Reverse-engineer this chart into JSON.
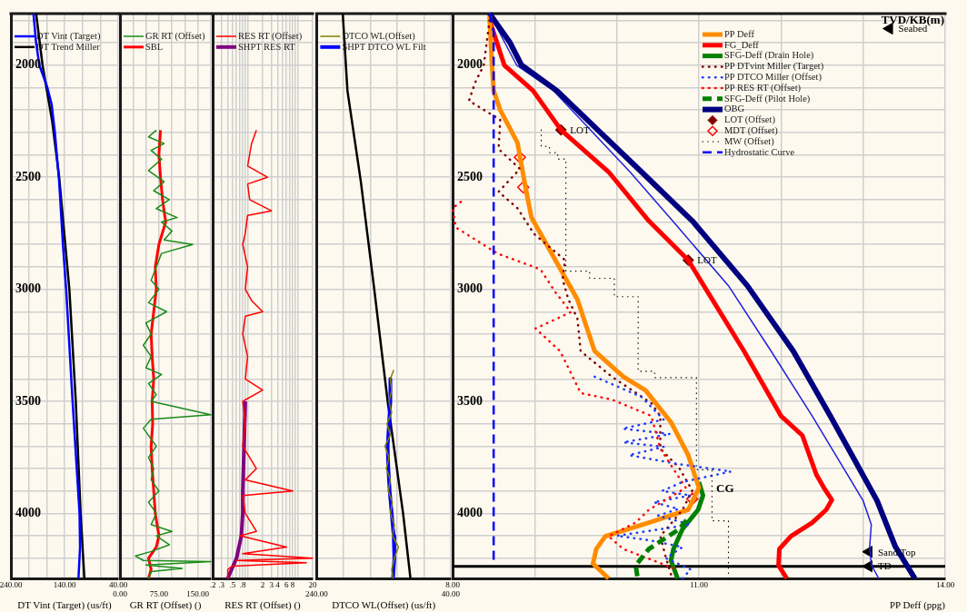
{
  "chart_data": [
    {
      "type": "line",
      "xlabel": "DT Vint (Target) (us/ft)",
      "xlim": [
        240,
        40
      ],
      "ylim": [
        4290,
        1770
      ],
      "xticks": [
        {
          "value": 240,
          "label": "240.00"
        },
        {
          "value": 206.67,
          "label": null
        },
        {
          "value": 173.33,
          "label": null
        },
        {
          "value": 140,
          "label": "140.00"
        },
        {
          "value": 106.67,
          "label": null
        },
        {
          "value": 73.33,
          "label": null
        },
        {
          "value": 40,
          "label": "40.00"
        }
      ],
      "yticks": [
        {
          "value": 1800,
          "label": null
        },
        {
          "value": 1900,
          "label": null
        },
        2000,
        {
          "value": 2100,
          "label": null
        },
        {
          "value": 2200,
          "label": null
        },
        {
          "value": 2300,
          "label": null
        },
        {
          "value": 2400,
          "label": null
        },
        2500,
        {
          "value": 2600,
          "label": null
        },
        {
          "value": 2700,
          "label": null
        },
        {
          "value": 2800,
          "label": null
        },
        {
          "value": 2900,
          "label": null
        },
        3000,
        {
          "value": 3100,
          "label": null
        },
        {
          "value": 3200,
          "label": null
        },
        {
          "value": 3300,
          "label": null
        },
        {
          "value": 3400,
          "label": null
        },
        3500,
        {
          "value": 3600,
          "label": null
        },
        {
          "value": 3700,
          "label": null
        },
        {
          "value": 3800,
          "label": null
        },
        {
          "value": 3900,
          "label": null
        },
        4000,
        {
          "value": 4100,
          "label": null
        },
        {
          "value": 4200,
          "label": null
        }
      ],
      "grid": true,
      "legend": "top left",
      "series": [
        {
          "name": "DT Vint (Target)",
          "color": "#0000ff",
          "x": [
            198,
            193,
            187,
            172,
            164,
            158,
            150,
            143,
            137,
            125,
            112,
            111,
            114
          ],
          "values": [
            1770,
            1900,
            2000,
            2100,
            2175,
            2300,
            2520,
            2800,
            3000,
            3500,
            4000,
            4150,
            4290
          ]
        },
        {
          "name": "DT Trend Miller",
          "color": "#000000",
          "x": [
            193,
            181,
            163,
            150,
            131,
            119,
            110,
            103
          ],
          "values": [
            1770,
            2000,
            2250,
            2500,
            3000,
            3500,
            4000,
            4290
          ]
        }
      ]
    },
    {
      "type": "line",
      "xlabel": "GR RT (Offset) ()",
      "xlim": [
        0,
        175
      ],
      "ylim": [
        4290,
        1770
      ],
      "tick_labels": "x",
      "xticks": [
        {
          "value": 0,
          "label": "0.00"
        },
        {
          "value": 25,
          "label": null
        },
        {
          "value": 50,
          "label": null
        },
        {
          "value": 75,
          "label": "75.00"
        },
        {
          "value": 100,
          "label": null
        },
        {
          "value": 125,
          "label": null
        },
        {
          "value": 150,
          "label": "150.00"
        },
        {
          "value": 175,
          "label": null
        }
      ],
      "yticks": [
        {
          "value": 1800,
          "label": null
        },
        {
          "value": 1900,
          "label": null
        },
        2000,
        {
          "value": 2100,
          "label": null
        },
        {
          "value": 2200,
          "label": null
        },
        {
          "value": 2300,
          "label": null
        },
        {
          "value": 2400,
          "label": null
        },
        2500,
        {
          "value": 2600,
          "label": null
        },
        {
          "value": 2700,
          "label": null
        },
        {
          "value": 2800,
          "label": null
        },
        {
          "value": 2900,
          "label": null
        },
        3000,
        {
          "value": 3100,
          "label": null
        },
        {
          "value": 3200,
          "label": null
        },
        {
          "value": 3300,
          "label": null
        },
        {
          "value": 3400,
          "label": null
        },
        3500,
        {
          "value": 3600,
          "label": null
        },
        {
          "value": 3700,
          "label": null
        },
        {
          "value": 3800,
          "label": null
        },
        {
          "value": 3900,
          "label": null
        },
        4000,
        {
          "value": 4100,
          "label": null
        },
        {
          "value": 4200,
          "label": null
        }
      ],
      "grid": true,
      "legend": "top left",
      "series": [
        {
          "name": "GR RT (Offset)",
          "color": "#1a8a1a",
          "x": [
            70,
            55,
            85,
            60,
            80,
            55,
            85,
            65,
            95,
            70,
            110,
            80,
            100,
            85,
            140,
            80,
            70,
            60,
            75,
            55,
            90,
            50,
            60,
            45,
            60,
            50,
            80,
            55,
            70,
            60,
            175,
            60,
            45,
            70,
            55,
            65,
            60,
            75,
            55,
            70,
            60,
            100,
            70,
            95,
            60,
            30,
            45,
            175,
            50,
            120,
            60,
            55
          ],
          "values": [
            2290,
            2320,
            2350,
            2380,
            2420,
            2470,
            2520,
            2560,
            2600,
            2640,
            2680,
            2700,
            2740,
            2780,
            2800,
            2840,
            2900,
            2960,
            3000,
            3060,
            3100,
            3150,
            3200,
            3250,
            3300,
            3350,
            3380,
            3420,
            3470,
            3500,
            3560,
            3580,
            3620,
            3700,
            3750,
            3800,
            3850,
            3900,
            3950,
            4000,
            4050,
            4080,
            4100,
            4140,
            4170,
            4190,
            4210,
            4215,
            4230,
            4245,
            4260,
            4290
          ]
        },
        {
          "name": "SBL",
          "color": "#ff0000",
          "x": [
            78,
            75,
            78,
            82,
            88,
            75,
            68,
            70,
            65,
            60,
            62,
            65,
            62,
            63,
            60,
            62,
            65,
            68,
            75,
            70,
            55,
            60,
            55
          ],
          "values": [
            2290,
            2400,
            2500,
            2600,
            2700,
            2800,
            2900,
            3000,
            3100,
            3200,
            3300,
            3400,
            3500,
            3600,
            3700,
            3800,
            3900,
            4000,
            4100,
            4150,
            4200,
            4250,
            4290
          ]
        }
      ]
    },
    {
      "type": "line",
      "xlabel": "RES RT (Offset) ()",
      "xlim": [
        0.2,
        20
      ],
      "ylim": [
        4290,
        1770
      ],
      "log": "x",
      "tick_labels": "x",
      "xticks": [
        {
          "value": 0.2,
          "label": ".2"
        },
        {
          "value": 0.3,
          "label": ".3"
        },
        {
          "value": 0.4,
          "label": null
        },
        {
          "value": 0.5,
          "label": ".5"
        },
        {
          "value": 0.6,
          "label": null
        },
        {
          "value": 0.7,
          "label": null
        },
        {
          "value": 0.8,
          "label": ".8"
        },
        {
          "value": 0.9,
          "label": null
        },
        {
          "value": 1,
          "label": null
        },
        2,
        3,
        4,
        {
          "value": 5,
          "label": null
        },
        6,
        {
          "value": 7,
          "label": null
        },
        8,
        {
          "value": 9,
          "label": null
        },
        {
          "value": 10,
          "label": null
        },
        20
      ],
      "yticks": [
        {
          "value": 1800,
          "label": null
        },
        {
          "value": 1900,
          "label": null
        },
        2000,
        {
          "value": 2100,
          "label": null
        },
        {
          "value": 2200,
          "label": null
        },
        {
          "value": 2300,
          "label": null
        },
        {
          "value": 2400,
          "label": null
        },
        2500,
        {
          "value": 2600,
          "label": null
        },
        {
          "value": 2700,
          "label": null
        },
        {
          "value": 2800,
          "label": null
        },
        {
          "value": 2900,
          "label": null
        },
        3000,
        {
          "value": 3100,
          "label": null
        },
        {
          "value": 3200,
          "label": null
        },
        {
          "value": 3300,
          "label": null
        },
        {
          "value": 3400,
          "label": null
        },
        3500,
        {
          "value": 3600,
          "label": null
        },
        {
          "value": 3700,
          "label": null
        },
        {
          "value": 3800,
          "label": null
        },
        {
          "value": 3900,
          "label": null
        },
        4000,
        {
          "value": 4100,
          "label": null
        },
        {
          "value": 4200,
          "label": null
        }
      ],
      "grid": true,
      "legend": "top left",
      "series": [
        {
          "name": "RES RT (Offset)",
          "color": "#ff0000",
          "x": [
            1.5,
            1.2,
            1.0,
            2.5,
            1.0,
            1.1,
            3,
            1.0,
            0.9,
            0.8,
            1.0,
            0.9,
            1.2,
            2,
            0.9,
            0.8,
            1.0,
            0.9,
            2,
            0.8,
            0.9,
            0.8,
            1.5,
            0.9,
            8,
            0.8,
            0.9,
            1.5,
            0.7,
            6,
            0.8,
            20,
            0.6,
            15,
            0.5,
            0.4,
            0.4
          ],
          "values": [
            2290,
            2350,
            2450,
            2500,
            2530,
            2600,
            2650,
            2670,
            2750,
            2800,
            2900,
            3000,
            3050,
            3100,
            3120,
            3200,
            3300,
            3400,
            3450,
            3500,
            3600,
            3700,
            3800,
            3850,
            3900,
            3920,
            4000,
            4080,
            4100,
            4150,
            4180,
            4200,
            4210,
            4220,
            4235,
            4250,
            4290
          ]
        },
        {
          "name": "SHPT RES RT",
          "color": "#800080",
          "x": [
            0.9,
            0.85,
            0.8,
            0.8,
            0.75,
            0.6,
            0.4
          ],
          "values": [
            3500,
            3700,
            3900,
            4000,
            4100,
            4200,
            4290
          ]
        }
      ]
    },
    {
      "type": "line",
      "xlabel": "DTCO WL(Offset) (us/ft)",
      "xlim": [
        240,
        40
      ],
      "ylim": [
        4290,
        1770
      ],
      "tick_labels": "x",
      "xticks": [
        {
          "value": 240,
          "label": "240.00"
        },
        {
          "value": 200,
          "label": null
        },
        {
          "value": 160,
          "label": null
        },
        {
          "value": 120,
          "label": null
        },
        {
          "value": 80,
          "label": null
        },
        {
          "value": 40,
          "label": "40.00"
        }
      ],
      "yticks": [
        {
          "value": 1800,
          "label": null
        },
        {
          "value": 1900,
          "label": null
        },
        2000,
        {
          "value": 2100,
          "label": null
        },
        {
          "value": 2200,
          "label": null
        },
        {
          "value": 2300,
          "label": null
        },
        {
          "value": 2400,
          "label": null
        },
        2500,
        {
          "value": 2600,
          "label": null
        },
        {
          "value": 2700,
          "label": null
        },
        {
          "value": 2800,
          "label": null
        },
        {
          "value": 2900,
          "label": null
        },
        3000,
        {
          "value": 3100,
          "label": null
        },
        {
          "value": 3200,
          "label": null
        },
        {
          "value": 3300,
          "label": null
        },
        {
          "value": 3400,
          "label": null
        },
        3500,
        {
          "value": 3600,
          "label": null
        },
        {
          "value": 3700,
          "label": null
        },
        {
          "value": 3800,
          "label": null
        },
        {
          "value": 3900,
          "label": null
        },
        4000,
        {
          "value": 4100,
          "label": null
        },
        {
          "value": 4200,
          "label": null
        }
      ],
      "grid": true,
      "legend": "top left",
      "series": [
        {
          "name": "DTCO WL(Offset)",
          "color": "#808000",
          "x": [
            125,
            130,
            128,
            132,
            128,
            135,
            130,
            138,
            132,
            136,
            130,
            133,
            127,
            130,
            124,
            127,
            118,
            124,
            128,
            126
          ],
          "values": [
            3360,
            3400,
            3450,
            3500,
            3550,
            3600,
            3650,
            3700,
            3750,
            3800,
            3850,
            3900,
            3950,
            4000,
            4050,
            4100,
            4150,
            4200,
            4250,
            4290
          ]
        },
        {
          "name": "SHPT DTCO WL Filt",
          "color": "#0000ff",
          "x": [
            130,
            130,
            132,
            134,
            133,
            131,
            128,
            125,
            124,
            126
          ],
          "values": [
            3400,
            3500,
            3600,
            3700,
            3800,
            3900,
            4000,
            4100,
            4200,
            4290
          ]
        },
        {
          "color": "#000000",
          "x": [
            201,
            194,
            174,
            154,
            134,
            111,
            100
          ],
          "values": [
            1770,
            2114,
            2520,
            3000,
            3500,
            4000,
            4290
          ]
        }
      ]
    },
    {
      "type": "line",
      "xlabel": "PP Deff (ppg)",
      "ylabel": "TVD/KB(m)",
      "xlim": [
        8,
        14
      ],
      "ylim": [
        4290,
        1770
      ],
      "xticks": [
        {
          "value": 8,
          "label": "8.00"
        },
        {
          "value": 9,
          "label": null
        },
        {
          "value": 10,
          "label": null
        },
        {
          "value": 11,
          "label": "11.00"
        },
        {
          "value": 12,
          "label": null
        },
        {
          "value": 13,
          "label": null
        },
        {
          "value": 14,
          "label": "14.00"
        }
      ],
      "yticks": [
        {
          "value": 1800,
          "label": null
        },
        {
          "value": 1900,
          "label": null
        },
        2000,
        {
          "value": 2100,
          "label": null
        },
        {
          "value": 2200,
          "label": null
        },
        {
          "value": 2300,
          "label": null
        },
        {
          "value": 2400,
          "label": null
        },
        2500,
        {
          "value": 2600,
          "label": null
        },
        {
          "value": 2700,
          "label": null
        },
        {
          "value": 2800,
          "label": null
        },
        {
          "value": 2900,
          "label": null
        },
        3000,
        {
          "value": 3100,
          "label": null
        },
        {
          "value": 3200,
          "label": null
        },
        {
          "value": 3300,
          "label": null
        },
        {
          "value": 3400,
          "label": null
        },
        3500,
        {
          "value": 3600,
          "label": null
        },
        {
          "value": 3700,
          "label": null
        },
        {
          "value": 3800,
          "label": null
        },
        {
          "value": 3900,
          "label": null
        },
        4000,
        {
          "value": 4100,
          "label": null
        },
        {
          "value": 4200,
          "label": null
        }
      ],
      "grid": true,
      "legend": "top",
      "ref_lines": [
        {
          "axis": "y",
          "value": 4236,
          "label": "TD",
          "color": "#000000"
        }
      ],
      "annotations": [
        {
          "text": "LOT",
          "x": 9.32,
          "y": 2289
        },
        {
          "text": "LOT",
          "x": 10.87,
          "y": 2870
        },
        {
          "text": "CG",
          "x": 11.1,
          "y": 3886
        },
        {
          "text": "Seabed",
          "x": 13.32,
          "y": 1837
        },
        {
          "text": "Sand Top",
          "x": 13.07,
          "y": 4171
        }
      ],
      "series": [
        {
          "name": "PP Deff",
          "color": "#ff8c00",
          "x": [
            8.45,
            8.48,
            8.5,
            8.58,
            8.79,
            8.89,
            8.96,
            9.52,
            9.73,
            10.08,
            10.35,
            10.66,
            10.87,
            11.0,
            10.87,
            10.39,
            9.86,
            9.75,
            9.71,
            9.9
          ],
          "values": [
            1780,
            2000,
            2114,
            2200,
            2346,
            2549,
            2679,
            3045,
            3276,
            3390,
            3451,
            3593,
            3740,
            3886,
            3984,
            4041,
            4102,
            4159,
            4224,
            4290
          ]
        },
        {
          "name": "FG_Deff",
          "color": "#ff0000",
          "x": [
            8.45,
            8.63,
            8.98,
            9.32,
            9.9,
            10.39,
            10.87,
            11.06,
            11.55,
            12.0,
            12.26,
            12.43,
            12.52,
            12.62,
            12.55,
            12.38,
            12.12,
            11.98,
            11.97,
            12.07
          ],
          "values": [
            1800,
            2000,
            2114,
            2289,
            2476,
            2695,
            2870,
            2984,
            3276,
            3565,
            3652,
            3826,
            3884,
            3940,
            3984,
            4041,
            4102,
            4159,
            4232,
            4290
          ]
        },
        {
          "name": "SFG-Deff (Drain Hole)",
          "color": "#008000",
          "x": [
            11.0,
            11.05,
            10.99,
            10.8,
            10.69,
            10.66,
            10.74
          ],
          "values": [
            3860,
            3920,
            3984,
            4070,
            4159,
            4210,
            4290
          ]
        },
        {
          "name": "PP DTvint Miller (Target)",
          "color": "#800000",
          "line_style": "dotted",
          "x": [
            8.45,
            8.38,
            8.28,
            8.24,
            8.2,
            8.58,
            8.56,
            8.82,
            8.56,
            8.79,
            8.99,
            9.37,
            9.34,
            9.41,
            9.52,
            9.56,
            9.94,
            10.42,
            10.53,
            10.53,
            10.76,
            10.92,
            10.8,
            10.53,
            10.6,
            10.66
          ],
          "values": [
            1800,
            2000,
            2073,
            2114,
            2159,
            2244,
            2374,
            2463,
            2565,
            2638,
            2752,
            2870,
            2955,
            3045,
            3130,
            3276,
            3390,
            3508,
            3565,
            3711,
            3797,
            3898,
            3984,
            4102,
            4200,
            4272
          ]
        },
        {
          "name": "PP DTCO Miller (Offset)",
          "color": "#1e3cff",
          "line_style": "dotted",
          "x": [
            9.73,
            10.3,
            10.57,
            10.07,
            10.65,
            10.08,
            10.57,
            10.15,
            10.75,
            11.39,
            10.8,
            10.55,
            10.9,
            10.45,
            10.75,
            10.5,
            10.9,
            10.0,
            10.4,
            10.8,
            10.6,
            10.9,
            10.8
          ],
          "values": [
            3390,
            3480,
            3581,
            3622,
            3646,
            3683,
            3703,
            3740,
            3780,
            3813,
            3860,
            3900,
            3920,
            3950,
            3980,
            4010,
            4050,
            4100,
            4120,
            4150,
            4200,
            4250,
            4290
          ]
        },
        {
          "name": "PP RES RT (Offset)",
          "color": "#ff0000",
          "line_style": "dotted",
          "x": [
            8.1,
            8.0,
            8.04,
            8.55,
            9.07,
            9.25,
            9.44,
            9.01,
            9.31,
            9.56,
            9.94,
            10.42,
            10.53,
            10.84,
            10.39,
            10.23,
            9.9,
            10.08,
            10.69
          ],
          "values": [
            2610,
            2638,
            2724,
            2841,
            2911,
            3012,
            3102,
            3175,
            3276,
            3463,
            3492,
            3565,
            3711,
            3886,
            3984,
            4041,
            4102,
            4159,
            4244
          ]
        },
        {
          "name": "SFG-Deff (Pilot Hole)",
          "color": "#008000",
          "line_style": "dashed",
          "x": [
            10.85,
            10.76,
            10.39,
            10.23,
            10.25
          ],
          "values": [
            4030,
            4070,
            4159,
            4232,
            4280
          ]
        },
        {
          "name": "OBG",
          "color": "#000080",
          "x": [
            8.45,
            8.7,
            8.84,
            9.27,
            9.8,
            10.3,
            10.92,
            11.59,
            12.15,
            12.6,
            13.17,
            13.39,
            13.63
          ],
          "values": [
            1770,
            1900,
            2000,
            2114,
            2300,
            2476,
            2695,
            2984,
            3276,
            3565,
            3943,
            4146,
            4290
          ]
        },
        {
          "name": "LOT (Offset)",
          "type": "scatter",
          "marker": "diamond",
          "color": "#800000",
          "x": [
            9.32,
            10.87
          ],
          "values": [
            2289,
            2870
          ]
        },
        {
          "name": "MDT (Offset)",
          "type": "scatter",
          "marker": "diamond",
          "color": "#ff0000",
          "x": [
            8.82,
            8.86,
            10.92
          ],
          "values": [
            2411,
            2545,
            3935
          ]
        },
        {
          "name": "MW (Offset)",
          "color": "#000000",
          "line_style": "dotted",
          "x": [
            9.08,
            9.08,
            9.18,
            9.18,
            9.28,
            9.28,
            9.38,
            9.38,
            9.67,
            9.67,
            9.97,
            9.97,
            10.26,
            10.26,
            10.46,
            10.46,
            10.97,
            10.97,
            11.16,
            11.16,
            11.36,
            11.36
          ],
          "values": [
            2289,
            2362,
            2362,
            2390,
            2390,
            2419,
            2419,
            2919,
            2919,
            2951,
            2951,
            3033,
            3033,
            3366,
            3366,
            3394,
            3394,
            3805,
            3805,
            4033,
            4033,
            4290
          ]
        },
        {
          "name": "Hydrostatic Curve",
          "color": "#0000ff",
          "line_style": "dashed",
          "x": [
            8.45,
            8.5,
            8.5
          ],
          "values": [
            1770,
            1850,
            4207
          ]
        },
        {
          "color": "#2020e0",
          "x": [
            8.45,
            8.78,
            9.23,
            10.16,
            10.68,
            11.36,
            11.88,
            12.38,
            13.0,
            13.1,
            13.08,
            13.1,
            13.19
          ],
          "values": [
            1770,
            2000,
            2114,
            2476,
            2695,
            2984,
            3276,
            3565,
            3943,
            4050,
            4150,
            4230,
            4290
          ]
        },
        {
          "type": "scatter",
          "marker": "triangle",
          "color": "#000000",
          "x": [
            13.32,
            13.07,
            13.07
          ],
          "values": [
            1837,
            4171,
            4236
          ]
        }
      ]
    }
  ]
}
